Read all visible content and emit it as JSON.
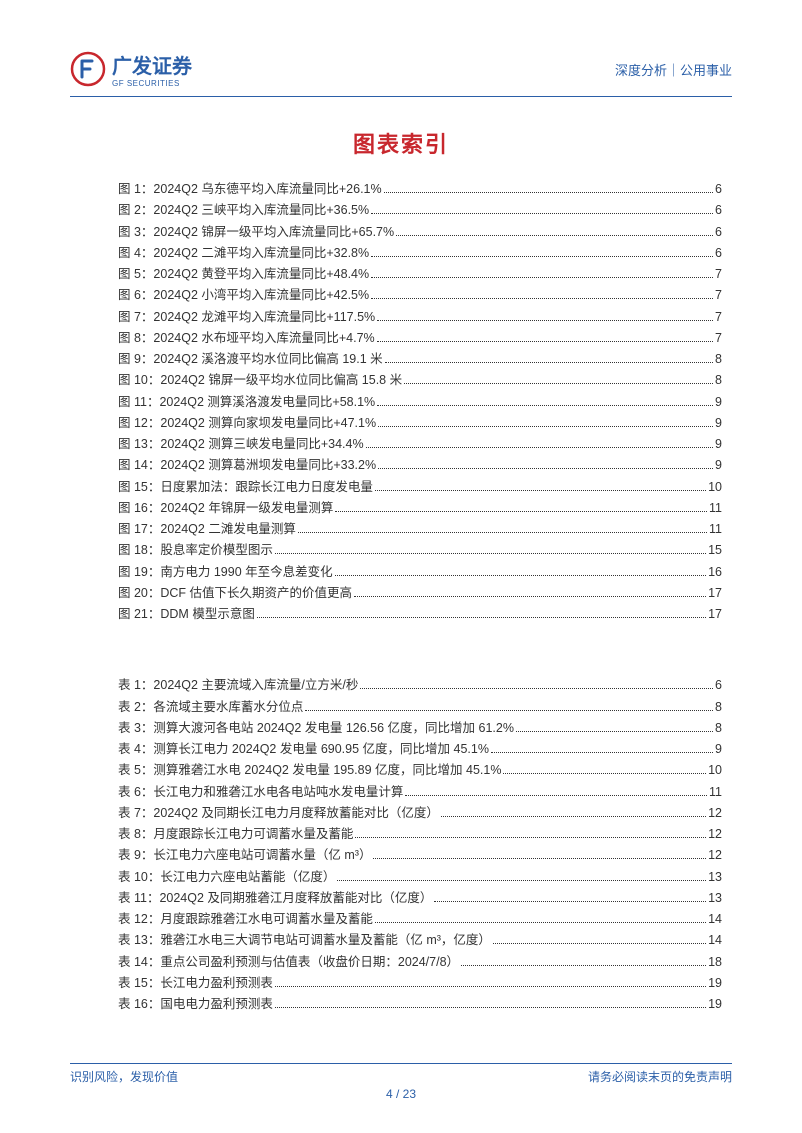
{
  "header": {
    "logo_cn": "广发证券",
    "logo_en": "GF SECURITIES",
    "right_text": "深度分析｜公用事业"
  },
  "index_title": "图表索引",
  "figures": [
    {
      "label": "图 1：",
      "title": "2024Q2 乌东德平均入库流量同比+26.1%",
      "page": "6"
    },
    {
      "label": "图 2：",
      "title": "2024Q2 三峡平均入库流量同比+36.5%",
      "page": "6"
    },
    {
      "label": "图 3：",
      "title": "2024Q2 锦屏一级平均入库流量同比+65.7%",
      "page": "6"
    },
    {
      "label": "图 4：",
      "title": "2024Q2 二滩平均入库流量同比+32.8%",
      "page": "6"
    },
    {
      "label": "图 5：",
      "title": "2024Q2 黄登平均入库流量同比+48.4%",
      "page": "7"
    },
    {
      "label": "图 6：",
      "title": "2024Q2 小湾平均入库流量同比+42.5%",
      "page": "7"
    },
    {
      "label": "图 7：",
      "title": "2024Q2 龙滩平均入库流量同比+117.5%",
      "page": "7"
    },
    {
      "label": "图 8：",
      "title": "2024Q2 水布垭平均入库流量同比+4.7%",
      "page": "7"
    },
    {
      "label": "图 9：",
      "title": "2024Q2 溪洛渡平均水位同比偏高 19.1 米",
      "page": "8"
    },
    {
      "label": "图 10：",
      "title": "2024Q2 锦屏一级平均水位同比偏高 15.8 米",
      "page": "8"
    },
    {
      "label": "图 11：",
      "title": "2024Q2 测算溪洛渡发电量同比+58.1%",
      "page": "9"
    },
    {
      "label": "图 12：",
      "title": "2024Q2 测算向家坝发电量同比+47.1%",
      "page": "9"
    },
    {
      "label": "图 13：",
      "title": "2024Q2 测算三峡发电量同比+34.4%",
      "page": "9"
    },
    {
      "label": "图 14：",
      "title": "2024Q2 测算葛洲坝发电量同比+33.2%",
      "page": "9"
    },
    {
      "label": "图 15：",
      "title": "日度累加法：跟踪长江电力日度发电量",
      "page": "10"
    },
    {
      "label": "图 16：",
      "title": "2024Q2 年锦屏一级发电量测算",
      "page": "11"
    },
    {
      "label": "图 17：",
      "title": "2024Q2 二滩发电量测算",
      "page": "11"
    },
    {
      "label": "图 18：",
      "title": "股息率定价模型图示",
      "page": "15"
    },
    {
      "label": "图 19：",
      "title": "南方电力 1990 年至今息差变化",
      "page": "16"
    },
    {
      "label": "图 20：",
      "title": "DCF 估值下长久期资产的价值更高",
      "page": "17"
    },
    {
      "label": "图 21：",
      "title": "DDM 模型示意图",
      "page": "17"
    }
  ],
  "tables": [
    {
      "label": "表 1：",
      "title": "2024Q2 主要流域入库流量/立方米/秒",
      "page": "6"
    },
    {
      "label": "表 2：",
      "title": "各流域主要水库蓄水分位点",
      "page": "8"
    },
    {
      "label": "表 3：",
      "title": "测算大渡河各电站 2024Q2 发电量 126.56 亿度，同比增加 61.2%",
      "page": "8"
    },
    {
      "label": "表 4：",
      "title": "测算长江电力 2024Q2 发电量 690.95 亿度，同比增加 45.1%",
      "page": "9"
    },
    {
      "label": "表 5：",
      "title": "测算雅砻江水电 2024Q2 发电量 195.89 亿度，同比增加 45.1%",
      "page": "10"
    },
    {
      "label": "表 6：",
      "title": "长江电力和雅砻江水电各电站吨水发电量计算",
      "page": "11"
    },
    {
      "label": "表 7：",
      "title": "2024Q2 及同期长江电力月度释放蓄能对比（亿度）",
      "page": "12"
    },
    {
      "label": "表 8：",
      "title": "月度跟踪长江电力可调蓄水量及蓄能",
      "page": "12"
    },
    {
      "label": "表 9：",
      "title": "长江电力六座电站可调蓄水量（亿 m³）",
      "page": "12"
    },
    {
      "label": "表 10：",
      "title": "长江电力六座电站蓄能（亿度）",
      "page": "13"
    },
    {
      "label": "表 11：",
      "title": "2024Q2 及同期雅砻江月度释放蓄能对比（亿度）",
      "page": "13"
    },
    {
      "label": "表 12：",
      "title": "月度跟踪雅砻江水电可调蓄水量及蓄能",
      "page": "14"
    },
    {
      "label": "表 13：",
      "title": "雅砻江水电三大调节电站可调蓄水量及蓄能（亿 m³，亿度）",
      "page": "14"
    },
    {
      "label": "表 14：",
      "title": "重点公司盈利预测与估值表（收盘价日期：2024/7/8）",
      "page": "18"
    },
    {
      "label": "表 15：",
      "title": "长江电力盈利预测表",
      "page": "19"
    },
    {
      "label": "表 16：",
      "title": "国电电力盈利预测表",
      "page": "19"
    }
  ],
  "footer": {
    "left": "识别风险，发现价值",
    "right": "请务必阅读末页的免责声明",
    "page": "4 / 23"
  },
  "colors": {
    "brand_blue": "#2b5fa8",
    "brand_red": "#c8272d",
    "text": "#333333",
    "background": "#ffffff"
  }
}
